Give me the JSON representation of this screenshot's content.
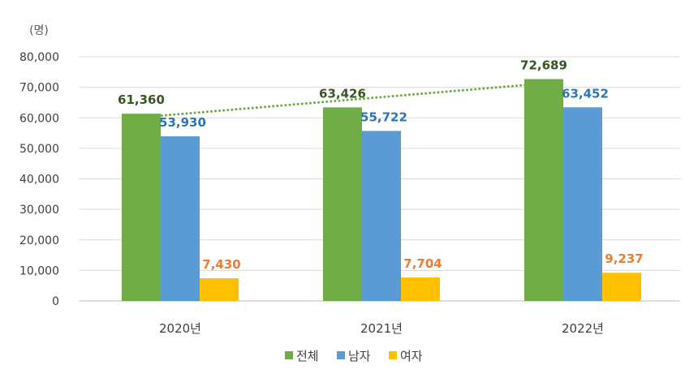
{
  "chart_data": {
    "type": "bar",
    "unit_label": "(명)",
    "categories": [
      "2020년",
      "2021년",
      "2022년"
    ],
    "series": [
      {
        "name": "전체",
        "values": [
          61360,
          63426,
          72689
        ],
        "labels": [
          "61,360",
          "63,426",
          "72,689"
        ],
        "color": "#70AD47",
        "label_color": "#375623"
      },
      {
        "name": "남자",
        "values": [
          53930,
          55722,
          63452
        ],
        "labels": [
          "53,930",
          "55,722",
          "63,452"
        ],
        "color": "#5B9BD5",
        "label_color": "#2E75B6"
      },
      {
        "name": "여자",
        "values": [
          7430,
          7704,
          9237
        ],
        "labels": [
          "7,430",
          "7,704",
          "9,237"
        ],
        "color": "#FFC000",
        "label_color": "#ED7D31"
      }
    ],
    "ylim": [
      0,
      80000
    ],
    "yticks": [
      "0",
      "10,000",
      "20,000",
      "30,000",
      "40,000",
      "50,000",
      "60,000",
      "70,000",
      "80,000"
    ],
    "ytick_values": [
      0,
      10000,
      20000,
      30000,
      40000,
      50000,
      60000,
      70000,
      80000
    ],
    "grid": true,
    "trendline": {
      "series": "전체",
      "style": "dotted",
      "color": "#70AD47"
    },
    "legend_position": "bottom"
  }
}
